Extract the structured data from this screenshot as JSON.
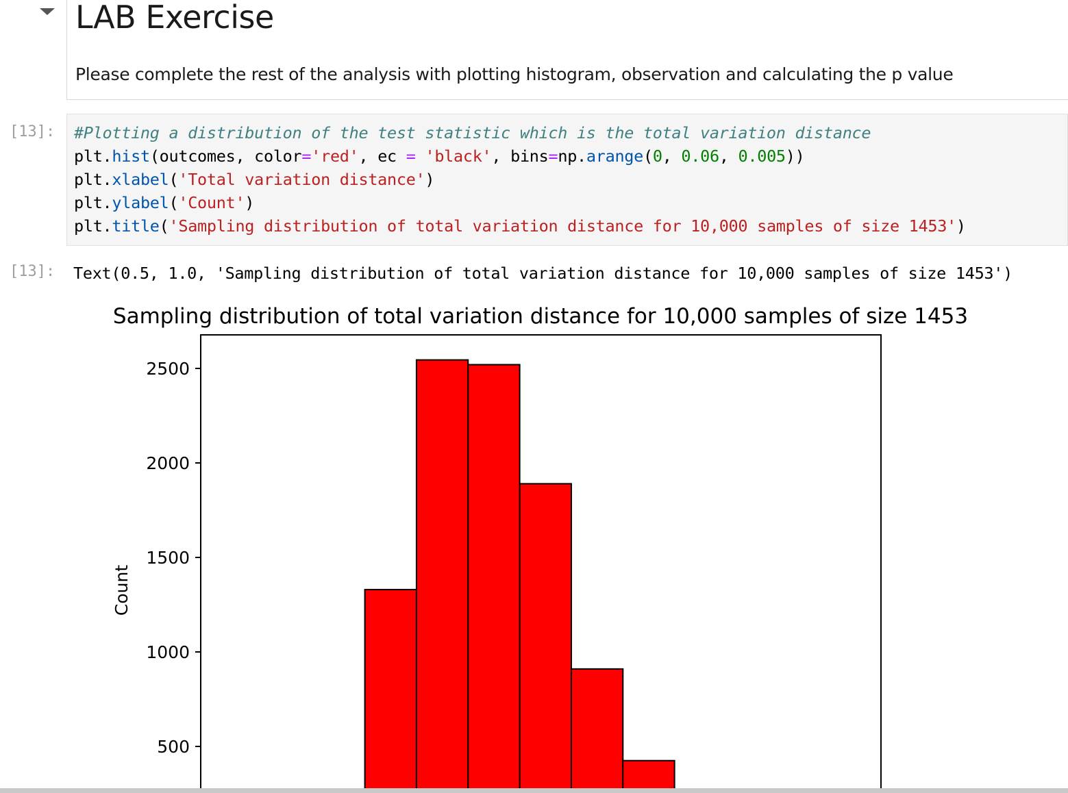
{
  "markdown_cell": {
    "title": "LAB Exercise",
    "paragraph": "Please complete the rest of the analysis with plotting histogram, observation and calculating the p value"
  },
  "code_cell": {
    "prompt": "[13]:",
    "lines": {
      "l1_comment": "#Plotting a distribution of the test statistic which is the total variation distance",
      "l2": {
        "a": "plt.",
        "fn": "hist",
        "b": "(outcomes, color",
        "eq1": "=",
        "s1": "'red'",
        "c": ", ec ",
        "eq2": "=",
        "d": " ",
        "s2": "'black'",
        "e": ", bins",
        "eq3": "=",
        "f": "np.",
        "fn2": "arange",
        "g": "(",
        "n1": "0",
        "h": ", ",
        "n2": "0.06",
        "i": ", ",
        "n3": "0.005",
        "j": "))"
      },
      "l3": {
        "a": "plt.",
        "fn": "xlabel",
        "b": "(",
        "s": "'Total variation distance'",
        "c": ")"
      },
      "l4": {
        "a": "plt.",
        "fn": "ylabel",
        "b": "(",
        "s": "'Count'",
        "c": ")"
      },
      "l5": {
        "a": "plt.",
        "fn": "title",
        "b": "(",
        "s": "'Sampling distribution of total variation distance for 10,000 samples of size 1453'",
        "c": ")"
      }
    }
  },
  "output": {
    "prompt": "[13]:",
    "text": "Text(0.5, 1.0, 'Sampling distribution of total variation distance for 10,000 samples of size 1453')"
  },
  "chart_data": {
    "type": "bar",
    "title": "Sampling distribution of total variation distance for 10,000 samples of size 1453",
    "ylabel": "Count",
    "xlabel": "",
    "bar_color": "#ff0000",
    "edge_color": "#000000",
    "bin_edges": [
      0.0,
      0.005,
      0.01,
      0.015,
      0.02,
      0.025,
      0.03,
      0.035,
      0.04,
      0.045,
      0.05,
      0.055
    ],
    "values": [
      0,
      0,
      1330,
      2545,
      2520,
      1890,
      910,
      425,
      0,
      0,
      0
    ],
    "yticks": [
      500,
      1000,
      1500,
      2000,
      2500
    ],
    "ylim_visible": [
      300,
      2675
    ],
    "grid": false
  }
}
